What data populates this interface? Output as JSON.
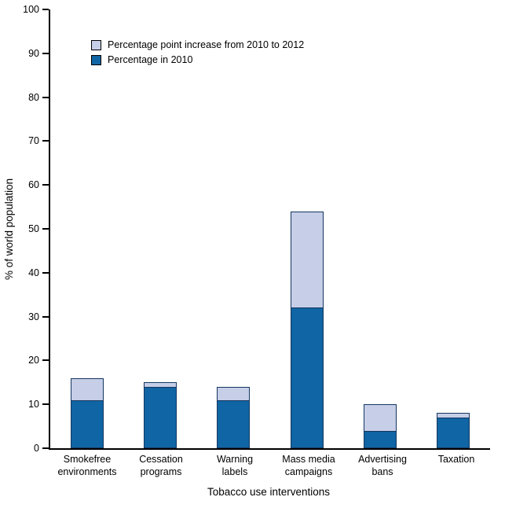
{
  "chart_data": {
    "type": "bar",
    "stacked": true,
    "title": "",
    "xlabel": "Tobacco use interventions",
    "ylabel": "% of world population",
    "ylim": [
      0,
      100
    ],
    "ytick_step": 10,
    "grid": false,
    "legend_position": "top-left-inside",
    "categories": [
      "Smokefree\nenvironments",
      "Cessation\nprograms",
      "Warning\nlabels",
      "Mass media\ncampaigns",
      "Advertising\nbans",
      "Taxation"
    ],
    "series": [
      {
        "name": "Percentage in 2010",
        "values": [
          11,
          14,
          11,
          32,
          4,
          7
        ],
        "color": "#1065a4"
      },
      {
        "name": "Percentage point increase from 2010 to 2012",
        "values": [
          5,
          1,
          3,
          22,
          6,
          1
        ],
        "color": "#c6cee8"
      }
    ],
    "colors": {
      "bar_2010": "#1065a4",
      "bar_increase": "#c6cee8",
      "bar_border": "#14365e",
      "axis": "#000000",
      "background": "#ffffff"
    }
  }
}
